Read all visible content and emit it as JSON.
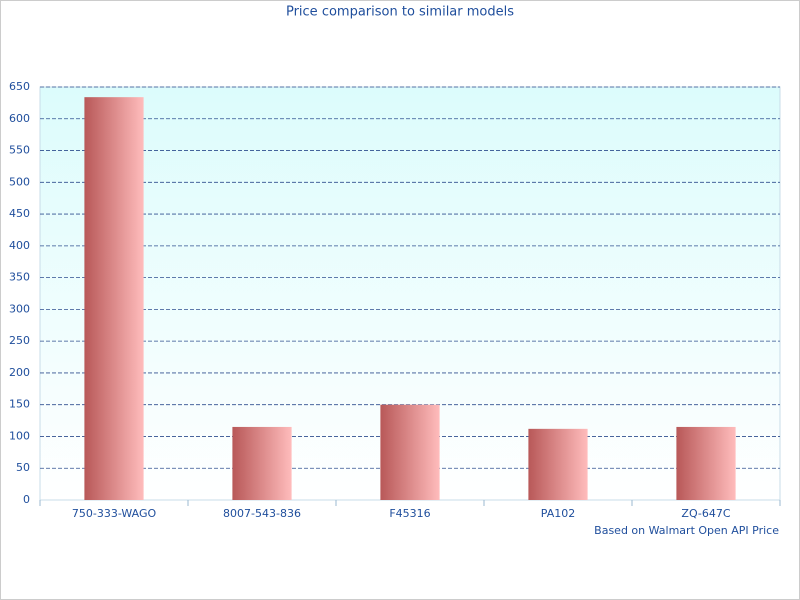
{
  "chart_data": {
    "type": "bar",
    "title": "Price comparison to similar models",
    "annotation": "Based on Walmart Open API Price",
    "categories": [
      "750-333-WAGO",
      "8007-543-836",
      "F45316",
      "PA102",
      "ZQ-647C"
    ],
    "values": [
      634,
      115,
      150,
      112,
      115
    ],
    "color": "#b85858",
    "ylim": [
      0,
      650
    ],
    "yticks": [
      0,
      50,
      100,
      150,
      200,
      250,
      300,
      350,
      400,
      450,
      500,
      550,
      600,
      650
    ],
    "grid": true
  }
}
